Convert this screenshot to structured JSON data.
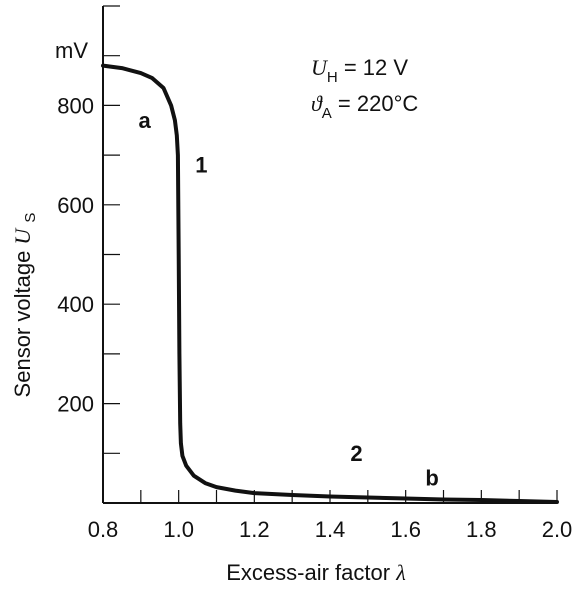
{
  "chart_data": {
    "type": "line",
    "xlabel": "Excess-air factor",
    "xlabel_symbol": "λ",
    "ylabel": "Sensor voltage",
    "ylabel_symbol": "U",
    "ylabel_subscript": "S",
    "y_unit": "mV",
    "xlim": [
      0.8,
      2.0
    ],
    "ylim": [
      0,
      1000
    ],
    "x_ticks": [
      "0.8",
      "1.0",
      "1.2",
      "1.4",
      "1.6",
      "1.8",
      "2.0"
    ],
    "y_ticks": [
      "200",
      "400",
      "600",
      "800"
    ],
    "grid": false,
    "series": [
      {
        "x": [
          0.8,
          0.85,
          0.9,
          0.93,
          0.96,
          0.98,
          0.99,
          0.995,
          0.998,
          1.0,
          1.002,
          1.004,
          1.006,
          1.01,
          1.02,
          1.04,
          1.07,
          1.1,
          1.15,
          1.2,
          1.3,
          1.4,
          1.5,
          1.6,
          1.7,
          1.8,
          1.9,
          2.0
        ],
        "y": [
          880,
          875,
          865,
          855,
          835,
          800,
          770,
          740,
          700,
          500,
          300,
          160,
          120,
          95,
          75,
          55,
          40,
          32,
          25,
          20,
          16,
          13,
          11,
          9,
          7,
          6,
          4,
          2
        ]
      }
    ],
    "annotations": [
      {
        "text": "a",
        "x": 0.91,
        "y": 755
      },
      {
        "text": "1",
        "x": 1.06,
        "y": 665
      },
      {
        "text": "2",
        "x": 1.47,
        "y": 85
      },
      {
        "text": "b",
        "x": 1.67,
        "y": 35
      }
    ],
    "conditions": [
      {
        "symbol": "U",
        "subscript": "H",
        "value": " = 12 V"
      },
      {
        "symbol": "ϑ",
        "subscript": "A",
        "value": " = 220°C"
      }
    ]
  }
}
